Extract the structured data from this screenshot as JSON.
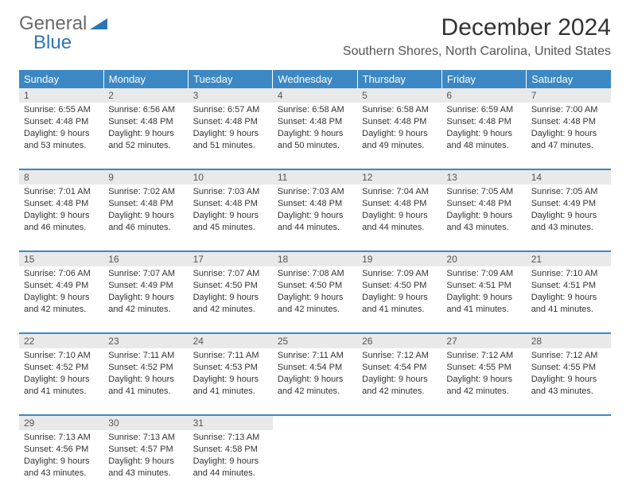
{
  "logo": {
    "word1": "General",
    "word2": "Blue"
  },
  "title": "December 2024",
  "location": "Southern Shores, North Carolina, United States",
  "colors": {
    "header_bg": "#3b88c4",
    "header_text": "#ffffff",
    "daynum_bg": "#e9e9e9",
    "border": "#3b88c4",
    "logo_gray": "#6a6a6a",
    "logo_blue": "#2d76b5"
  },
  "day_headers": [
    "Sunday",
    "Monday",
    "Tuesday",
    "Wednesday",
    "Thursday",
    "Friday",
    "Saturday"
  ],
  "weeks": [
    [
      {
        "n": "1",
        "sr": "6:55 AM",
        "ss": "4:48 PM",
        "dl": "9 hours and 53 minutes."
      },
      {
        "n": "2",
        "sr": "6:56 AM",
        "ss": "4:48 PM",
        "dl": "9 hours and 52 minutes."
      },
      {
        "n": "3",
        "sr": "6:57 AM",
        "ss": "4:48 PM",
        "dl": "9 hours and 51 minutes."
      },
      {
        "n": "4",
        "sr": "6:58 AM",
        "ss": "4:48 PM",
        "dl": "9 hours and 50 minutes."
      },
      {
        "n": "5",
        "sr": "6:58 AM",
        "ss": "4:48 PM",
        "dl": "9 hours and 49 minutes."
      },
      {
        "n": "6",
        "sr": "6:59 AM",
        "ss": "4:48 PM",
        "dl": "9 hours and 48 minutes."
      },
      {
        "n": "7",
        "sr": "7:00 AM",
        "ss": "4:48 PM",
        "dl": "9 hours and 47 minutes."
      }
    ],
    [
      {
        "n": "8",
        "sr": "7:01 AM",
        "ss": "4:48 PM",
        "dl": "9 hours and 46 minutes."
      },
      {
        "n": "9",
        "sr": "7:02 AM",
        "ss": "4:48 PM",
        "dl": "9 hours and 46 minutes."
      },
      {
        "n": "10",
        "sr": "7:03 AM",
        "ss": "4:48 PM",
        "dl": "9 hours and 45 minutes."
      },
      {
        "n": "11",
        "sr": "7:03 AM",
        "ss": "4:48 PM",
        "dl": "9 hours and 44 minutes."
      },
      {
        "n": "12",
        "sr": "7:04 AM",
        "ss": "4:48 PM",
        "dl": "9 hours and 44 minutes."
      },
      {
        "n": "13",
        "sr": "7:05 AM",
        "ss": "4:48 PM",
        "dl": "9 hours and 43 minutes."
      },
      {
        "n": "14",
        "sr": "7:05 AM",
        "ss": "4:49 PM",
        "dl": "9 hours and 43 minutes."
      }
    ],
    [
      {
        "n": "15",
        "sr": "7:06 AM",
        "ss": "4:49 PM",
        "dl": "9 hours and 42 minutes."
      },
      {
        "n": "16",
        "sr": "7:07 AM",
        "ss": "4:49 PM",
        "dl": "9 hours and 42 minutes."
      },
      {
        "n": "17",
        "sr": "7:07 AM",
        "ss": "4:50 PM",
        "dl": "9 hours and 42 minutes."
      },
      {
        "n": "18",
        "sr": "7:08 AM",
        "ss": "4:50 PM",
        "dl": "9 hours and 42 minutes."
      },
      {
        "n": "19",
        "sr": "7:09 AM",
        "ss": "4:50 PM",
        "dl": "9 hours and 41 minutes."
      },
      {
        "n": "20",
        "sr": "7:09 AM",
        "ss": "4:51 PM",
        "dl": "9 hours and 41 minutes."
      },
      {
        "n": "21",
        "sr": "7:10 AM",
        "ss": "4:51 PM",
        "dl": "9 hours and 41 minutes."
      }
    ],
    [
      {
        "n": "22",
        "sr": "7:10 AM",
        "ss": "4:52 PM",
        "dl": "9 hours and 41 minutes."
      },
      {
        "n": "23",
        "sr": "7:11 AM",
        "ss": "4:52 PM",
        "dl": "9 hours and 41 minutes."
      },
      {
        "n": "24",
        "sr": "7:11 AM",
        "ss": "4:53 PM",
        "dl": "9 hours and 41 minutes."
      },
      {
        "n": "25",
        "sr": "7:11 AM",
        "ss": "4:54 PM",
        "dl": "9 hours and 42 minutes."
      },
      {
        "n": "26",
        "sr": "7:12 AM",
        "ss": "4:54 PM",
        "dl": "9 hours and 42 minutes."
      },
      {
        "n": "27",
        "sr": "7:12 AM",
        "ss": "4:55 PM",
        "dl": "9 hours and 42 minutes."
      },
      {
        "n": "28",
        "sr": "7:12 AM",
        "ss": "4:55 PM",
        "dl": "9 hours and 43 minutes."
      }
    ],
    [
      {
        "n": "29",
        "sr": "7:13 AM",
        "ss": "4:56 PM",
        "dl": "9 hours and 43 minutes."
      },
      {
        "n": "30",
        "sr": "7:13 AM",
        "ss": "4:57 PM",
        "dl": "9 hours and 43 minutes."
      },
      {
        "n": "31",
        "sr": "7:13 AM",
        "ss": "4:58 PM",
        "dl": "9 hours and 44 minutes."
      },
      null,
      null,
      null,
      null
    ]
  ],
  "labels": {
    "sunrise": "Sunrise:",
    "sunset": "Sunset:",
    "daylight": "Daylight:"
  }
}
